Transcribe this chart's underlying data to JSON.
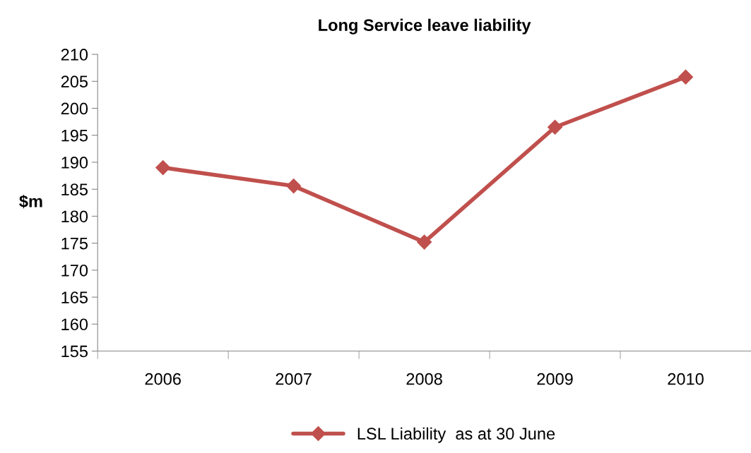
{
  "chart_data": {
    "type": "line",
    "title": "Long Service leave liability",
    "ylabel": "$m",
    "categories": [
      "2006",
      "2007",
      "2008",
      "2009",
      "2010"
    ],
    "series": [
      {
        "name": "LSL Liability  as at 30 June",
        "color": "#c0504d",
        "values": [
          189.0,
          185.6,
          175.2,
          196.5,
          205.8
        ]
      }
    ],
    "ylim": [
      155,
      210
    ],
    "yticks": [
      155,
      160,
      165,
      170,
      175,
      180,
      185,
      190,
      195,
      200,
      205,
      210
    ],
    "grid": false,
    "legend": "bottom",
    "marker": "diamond",
    "line_style": "solid"
  }
}
